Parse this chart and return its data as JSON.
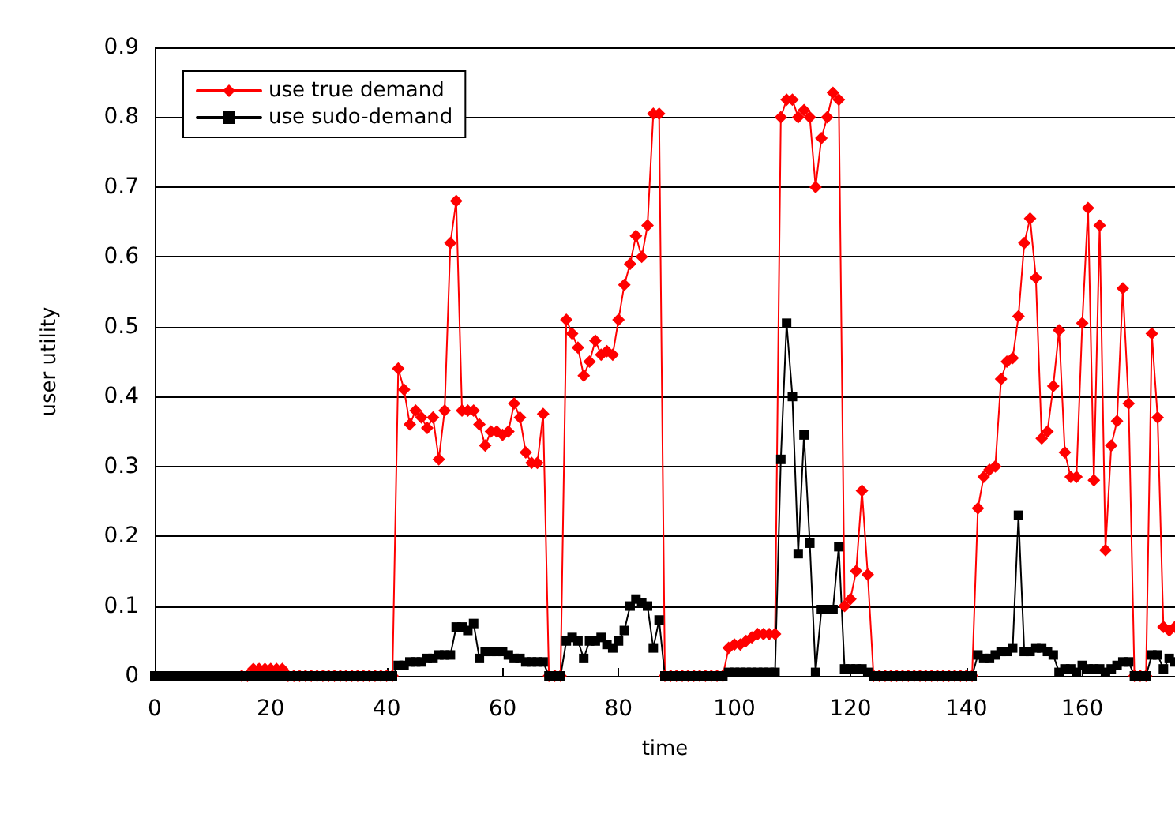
{
  "chart_data": {
    "type": "line",
    "xlabel": "time",
    "ylabel": "user utility",
    "x": [
      0,
      1,
      2,
      3,
      4,
      5,
      6,
      7,
      8,
      9,
      10,
      11,
      12,
      13,
      14,
      15,
      16,
      17,
      18,
      19,
      20,
      21,
      22,
      23,
      24,
      25,
      26,
      27,
      28,
      29,
      30,
      31,
      32,
      33,
      34,
      35,
      36,
      37,
      38,
      39,
      40,
      41,
      42,
      43,
      44,
      45,
      46,
      47,
      48,
      49,
      50,
      51,
      52,
      53,
      54,
      55,
      56,
      57,
      58,
      59,
      60,
      61,
      62,
      63,
      64,
      65,
      66,
      67,
      68,
      69,
      70,
      71,
      72,
      73,
      74,
      75,
      76,
      77,
      78,
      79,
      80,
      81,
      82,
      83,
      84,
      85,
      86,
      87,
      88,
      89,
      90,
      91,
      92,
      93,
      94,
      95,
      96,
      97,
      98,
      99,
      100,
      101,
      102,
      103,
      104,
      105,
      106,
      107,
      108,
      109,
      110,
      111,
      112,
      113,
      114,
      115,
      116,
      117,
      118,
      119,
      120,
      121,
      122,
      123,
      124,
      125,
      126,
      127,
      128,
      129,
      130,
      131,
      132,
      133,
      134,
      135,
      136,
      137,
      138,
      139,
      140,
      141,
      142,
      143,
      144,
      145,
      146,
      147,
      148,
      149,
      150,
      151,
      152,
      153,
      154,
      155,
      156,
      157,
      158,
      159,
      160,
      161,
      162,
      163,
      164,
      165,
      166,
      167,
      168,
      169,
      170,
      171,
      172,
      173,
      174,
      175,
      176
    ],
    "series": [
      {
        "name": "use true demand",
        "color": "#ff0000",
        "marker": "diamond",
        "values": [
          null,
          null,
          null,
          null,
          null,
          null,
          null,
          null,
          null,
          null,
          null,
          null,
          null,
          null,
          null,
          0,
          0,
          0.01,
          0.01,
          0.01,
          0.01,
          0.01,
          0.01,
          0,
          0,
          0,
          0,
          0,
          0,
          0,
          0,
          0,
          0,
          0,
          0,
          0,
          0,
          0,
          0,
          0,
          0,
          0,
          0.44,
          0.41,
          0.36,
          0.38,
          0.37,
          0.355,
          0.37,
          0.31,
          0.38,
          0.62,
          0.68,
          0.38,
          0.38,
          0.38,
          0.36,
          0.33,
          0.35,
          0.35,
          0.345,
          0.35,
          0.39,
          0.37,
          0.32,
          0.305,
          0.305,
          0.375,
          0,
          0,
          0,
          0.51,
          0.49,
          0.47,
          0.43,
          0.45,
          0.48,
          0.46,
          0.465,
          0.46,
          0.51,
          0.56,
          0.59,
          0.63,
          0.6,
          0.645,
          0.805,
          0.805,
          0,
          0,
          0,
          0,
          0,
          0,
          0,
          0,
          0,
          0,
          0,
          0.04,
          0.045,
          0.045,
          0.05,
          0.055,
          0.06,
          0.06,
          0.06,
          0.06,
          0.8,
          0.825,
          0.825,
          0.8,
          0.81,
          0.8,
          0.7,
          0.77,
          0.8,
          0.835,
          0.825,
          0.1,
          0.11,
          0.15,
          0.265,
          0.145,
          0,
          0,
          0,
          0,
          0,
          0,
          0,
          0,
          0,
          0,
          0,
          0,
          0,
          0,
          0,
          0,
          0,
          0,
          0.24,
          0.285,
          0.295,
          0.3,
          0.425,
          0.45,
          0.455,
          0.515,
          0.62,
          0.655,
          0.57,
          0.34,
          0.35,
          0.415,
          0.495,
          0.32,
          0.285,
          0.285,
          0.505,
          0.67,
          0.28,
          0.645,
          0.18,
          0.33,
          0.365,
          0.555,
          0.39,
          0,
          0,
          0,
          0.49,
          0.37,
          0.07,
          0.065,
          0.07
        ]
      },
      {
        "name": "use sudo-demand",
        "color": "#000000",
        "marker": "square",
        "values": [
          0,
          0,
          0,
          0,
          0,
          0,
          0,
          0,
          0,
          0,
          0,
          0,
          0,
          0,
          0,
          0,
          0,
          0,
          0,
          0,
          0,
          0,
          0,
          0,
          0,
          0,
          0,
          0,
          0,
          0,
          0,
          0,
          0,
          0,
          0,
          0,
          0,
          0,
          0,
          0,
          0,
          0,
          0.015,
          0.015,
          0.02,
          0.02,
          0.02,
          0.025,
          0.025,
          0.03,
          0.03,
          0.03,
          0.07,
          0.07,
          0.065,
          0.075,
          0.025,
          0.035,
          0.035,
          0.035,
          0.035,
          0.03,
          0.025,
          0.025,
          0.02,
          0.02,
          0.02,
          0.02,
          0,
          0,
          0,
          0.05,
          0.055,
          0.05,
          0.025,
          0.05,
          0.05,
          0.055,
          0.045,
          0.04,
          0.05,
          0.065,
          0.1,
          0.11,
          0.105,
          0.1,
          0.04,
          0.08,
          0,
          0,
          0,
          0,
          0,
          0,
          0,
          0,
          0,
          0,
          0,
          0.005,
          0.005,
          0.005,
          0.005,
          0.005,
          0.005,
          0.005,
          0.005,
          0.005,
          0.31,
          0.505,
          0.4,
          0.175,
          0.345,
          0.19,
          0.005,
          0.095,
          0.095,
          0.095,
          0.185,
          0.01,
          0.01,
          0.01,
          0.01,
          0.005,
          0,
          0,
          0,
          0,
          0,
          0,
          0,
          0,
          0,
          0,
          0,
          0,
          0,
          0,
          0,
          0,
          0,
          0,
          0.03,
          0.025,
          0.025,
          0.03,
          0.035,
          0.035,
          0.04,
          0.23,
          0.035,
          0.035,
          0.04,
          0.04,
          0.035,
          0.03,
          0.005,
          0.01,
          0.01,
          0.005,
          0.015,
          0.01,
          0.01,
          0.01,
          0.005,
          0.01,
          0.015,
          0.02,
          0.02,
          0,
          0,
          0,
          0.03,
          0.03,
          0.01,
          0.025,
          0.02
        ]
      }
    ],
    "xlim": [
      0,
      176
    ],
    "xticks": [
      0,
      20,
      40,
      60,
      80,
      100,
      120,
      140,
      160
    ],
    "ylim": [
      0,
      0.9
    ],
    "yticks": [
      0,
      0.1,
      0.2,
      0.3,
      0.4,
      0.5,
      0.6,
      0.7,
      0.8,
      0.9
    ],
    "grid": "y",
    "legend": "top left"
  }
}
